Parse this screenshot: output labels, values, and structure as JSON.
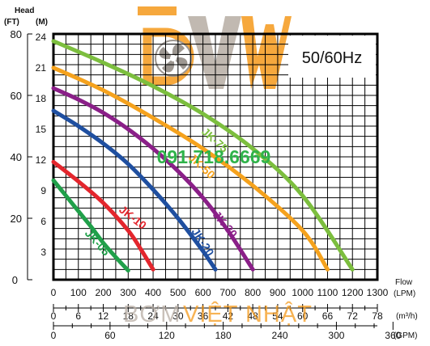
{
  "header": {
    "head_title": "Head",
    "unit_ft": "(FT)",
    "unit_m": "(M)"
  },
  "frequency_box": {
    "label": "50/60Hz"
  },
  "watermark": {
    "phone": "091.718.6669",
    "brand_word1": "BƠM",
    "brand_word2": "VIỆT NHẬT"
  },
  "axes": {
    "flow_title": "Flow",
    "lpm_unit": "(LPM)",
    "m3h_unit": "(m³/h)",
    "gpm_unit": "(GPM)",
    "lpm_ticks": [
      "0",
      "100",
      "200",
      "300",
      "400",
      "500",
      "600",
      "700",
      "800",
      "900",
      "1000",
      "1100",
      "1200",
      "1300"
    ],
    "m3h_ticks": [
      "0",
      "6",
      "12",
      "18",
      "24",
      "30",
      "36",
      "42",
      "48",
      "54",
      "60",
      "66",
      "72",
      "78"
    ],
    "gpm_ticks": [
      "0",
      "60",
      "120",
      "180",
      "240",
      "300",
      "360"
    ],
    "m_ticks": [
      "3",
      "6",
      "9",
      "12",
      "15",
      "18",
      "21",
      "24"
    ],
    "ft_ticks": [
      "0",
      "20",
      "40",
      "60",
      "80"
    ]
  },
  "colors": {
    "JK-05": "#20a04a",
    "JK-10": "#e3262d",
    "JK-20": "#1f4fa0",
    "JK-30": "#8a1f88",
    "JK-50": "#f5a21d",
    "JK-75": "#7cbe3e"
  },
  "chart_data": {
    "type": "line",
    "xlabel": "Flow",
    "ylabel": "Head",
    "x_unit": "LPM",
    "y_unit": "M",
    "xlim": [
      0,
      1300
    ],
    "ylim": [
      0,
      24
    ],
    "grid": true,
    "series": [
      {
        "name": "JK-05",
        "x": [
          0,
          50,
          100,
          150,
          200,
          250,
          300
        ],
        "y": [
          9.7,
          8.2,
          6.7,
          5.2,
          3.6,
          2.2,
          0.9
        ]
      },
      {
        "name": "JK-10",
        "x": [
          0,
          100,
          200,
          300,
          350,
          400
        ],
        "y": [
          11.5,
          9.6,
          7.5,
          4.8,
          3.0,
          1.0
        ]
      },
      {
        "name": "JK-20",
        "x": [
          0,
          100,
          200,
          300,
          400,
          500,
          600,
          650
        ],
        "y": [
          16.5,
          15.0,
          13.3,
          11.3,
          8.8,
          6.0,
          2.8,
          1.0
        ]
      },
      {
        "name": "JK-30",
        "x": [
          0,
          100,
          200,
          300,
          400,
          500,
          600,
          700,
          800
        ],
        "y": [
          18.7,
          17.6,
          16.3,
          14.7,
          12.8,
          10.6,
          8.0,
          4.8,
          1.0
        ]
      },
      {
        "name": "JK-50",
        "x": [
          0,
          200,
          400,
          600,
          800,
          1000,
          1100
        ],
        "y": [
          20.7,
          18.5,
          15.8,
          12.8,
          9.2,
          4.8,
          1.0
        ]
      },
      {
        "name": "JK-75",
        "x": [
          0,
          200,
          400,
          600,
          800,
          1000,
          1200
        ],
        "y": [
          23.3,
          21.2,
          18.9,
          16.2,
          12.8,
          8.2,
          1.0
        ]
      }
    ]
  }
}
